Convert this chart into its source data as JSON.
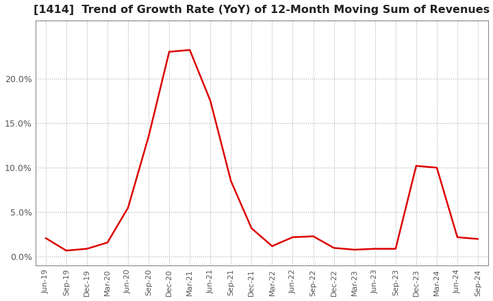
{
  "title": "[1414]  Trend of Growth Rate (YoY) of 12-Month Moving Sum of Revenues",
  "title_fontsize": 11.5,
  "line_color": "#dd0000",
  "background_color": "#ffffff",
  "grid_color": "#aaaaaa",
  "x_labels": [
    "Jun-19",
    "Sep-19",
    "Dec-19",
    "Mar-20",
    "Jun-20",
    "Sep-20",
    "Dec-20",
    "Mar-21",
    "Jun-21",
    "Sep-21",
    "Dec-21",
    "Mar-22",
    "Jun-22",
    "Sep-22",
    "Dec-22",
    "Mar-23",
    "Jun-23",
    "Sep-23",
    "Dec-23",
    "Mar-24",
    "Jun-24",
    "Sep-24"
  ],
  "y_values": [
    2.1,
    0.7,
    0.9,
    1.6,
    5.5,
    13.5,
    23.0,
    23.2,
    17.5,
    8.5,
    3.2,
    1.2,
    2.2,
    2.3,
    1.0,
    0.8,
    0.9,
    0.9,
    10.2,
    10.0,
    2.2,
    2.0
  ],
  "ylim_min": -1.0,
  "ylim_max": 26.5,
  "yticks": [
    0.0,
    5.0,
    10.0,
    15.0,
    20.0
  ],
  "tick_color": "#555555"
}
